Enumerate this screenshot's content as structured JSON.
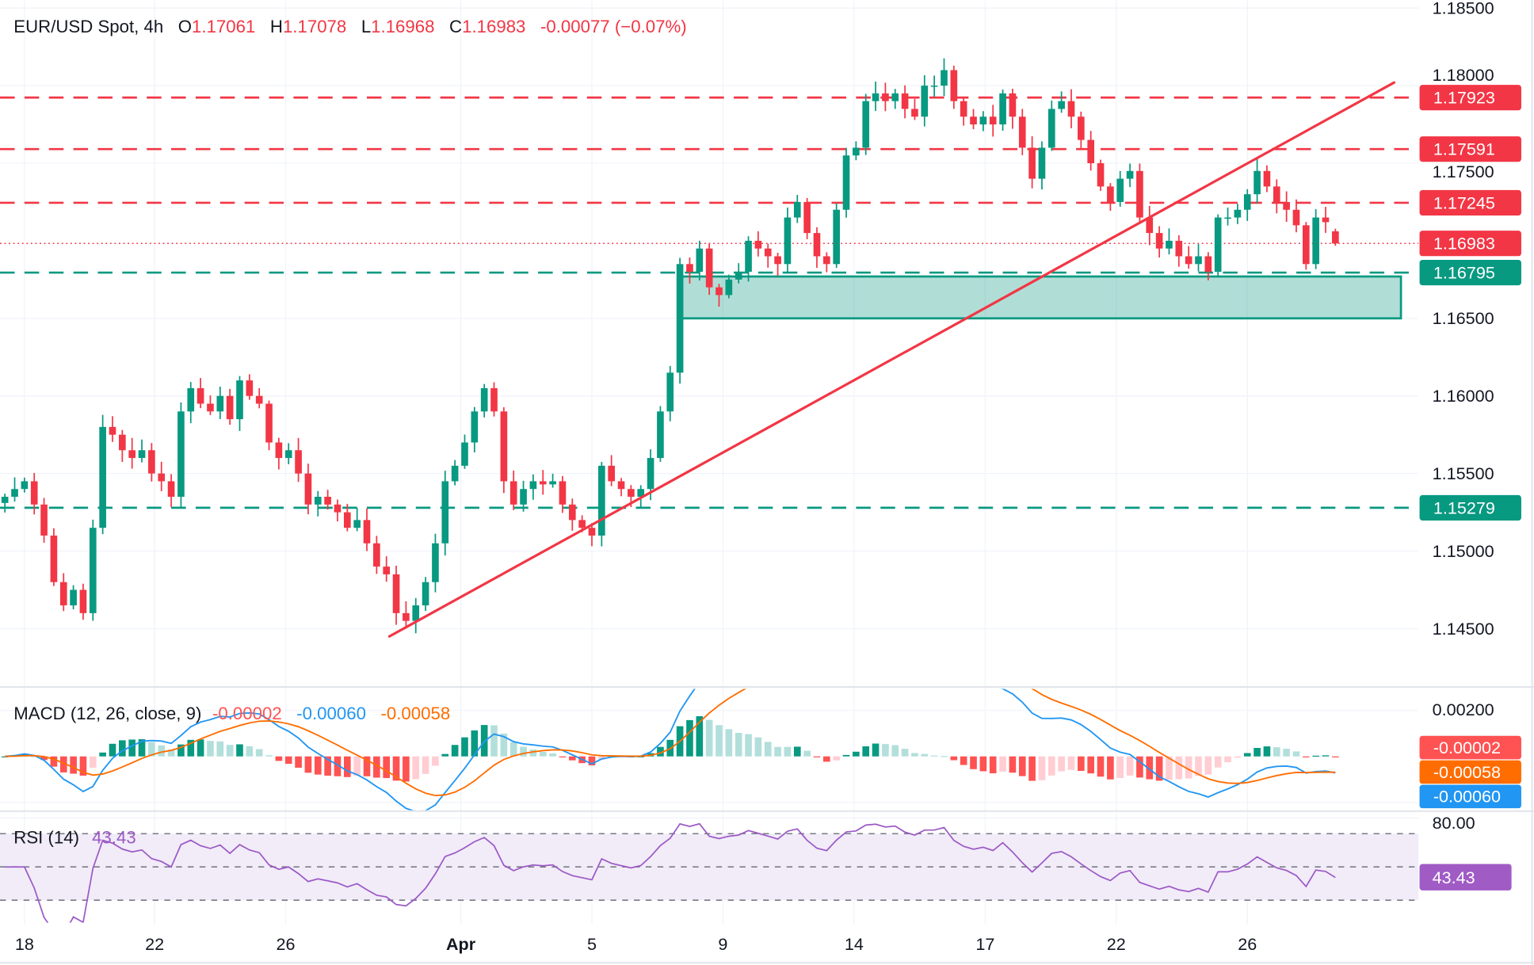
{
  "header": {
    "symbol": "EUR/USD Spot, 4h",
    "o_label": "O",
    "open": "1.17061",
    "h_label": "H",
    "high": "1.17078",
    "l_label": "L",
    "low": "1.16968",
    "c_label": "C",
    "close": "1.16983",
    "change": "-0.00077 (−0.07%)"
  },
  "price_axis": {
    "ticks": [
      "1.18500",
      "1.18000",
      "1.17500",
      "1.16500",
      "1.16000",
      "1.15500",
      "1.15000",
      "1.14500"
    ]
  },
  "levels": [
    {
      "price": "1.17923",
      "color": "#f23645",
      "style": "dashed"
    },
    {
      "price": "1.17591",
      "color": "#f23645",
      "style": "dashed"
    },
    {
      "price": "1.17245",
      "color": "#f23645",
      "style": "dashed"
    },
    {
      "price": "1.16795",
      "color": "#089981",
      "style": "dashed"
    },
    {
      "price": "1.15279",
      "color": "#089981",
      "style": "dashed"
    }
  ],
  "current_price": {
    "price": "1.16983",
    "color": "#f23645",
    "style": "dotted"
  },
  "support_zone": {
    "top": 1.16795,
    "bottom": 1.165,
    "color": "#089981"
  },
  "trendline": {
    "start_price": 1.1445,
    "end_price": 1.1802,
    "color": "#f23645"
  },
  "date_axis": {
    "labels": [
      "18",
      "22",
      "26",
      "Apr",
      "5",
      "9",
      "14",
      "17",
      "22",
      "26"
    ]
  },
  "macd": {
    "label": "MACD (12, 26, close, 9)",
    "histogram": "-0.00002",
    "macd_value": "-0.00060",
    "signal_value": "-0.00058",
    "axis_tick": "0.00200",
    "colors": {
      "histogram": "#ff5252",
      "macd": "#2196f3",
      "signal": "#ff6d00"
    }
  },
  "rsi": {
    "label": "RSI (14)",
    "value": "43.43",
    "axis_tick": "80.00",
    "bands": [
      70,
      50,
      30
    ],
    "color": "#9c59c6"
  },
  "colors": {
    "up": "#089981",
    "down": "#f23645"
  },
  "chart_data": {
    "type": "candlestick",
    "title": "EUR/USD Spot, 4h",
    "ylim": [
      1.1415,
      1.1855
    ],
    "closes": [
      1.1535,
      1.154,
      1.1545,
      1.153,
      1.151,
      1.148,
      1.1465,
      1.1475,
      1.146,
      1.1515,
      1.158,
      1.1575,
      1.1565,
      1.156,
      1.1565,
      1.155,
      1.1545,
      1.1535,
      1.159,
      1.1605,
      1.1595,
      1.159,
      1.16,
      1.1585,
      1.161,
      1.16,
      1.1595,
      1.157,
      1.156,
      1.1565,
      1.155,
      1.153,
      1.1535,
      1.153,
      1.1525,
      1.1515,
      1.152,
      1.1505,
      1.149,
      1.1485,
      1.146,
      1.1455,
      1.1465,
      1.148,
      1.1505,
      1.1545,
      1.1555,
      1.157,
      1.159,
      1.1605,
      1.159,
      1.1545,
      1.153,
      1.154,
      1.1545,
      1.1543,
      1.1545,
      1.153,
      1.152,
      1.1515,
      1.151,
      1.1555,
      1.1545,
      1.154,
      1.1535,
      1.154,
      1.156,
      1.159,
      1.1615,
      1.1685,
      1.168,
      1.1695,
      1.167,
      1.1665,
      1.1675,
      1.168,
      1.17,
      1.1695,
      1.169,
      1.1685,
      1.1715,
      1.1725,
      1.1705,
      1.169,
      1.1685,
      1.172,
      1.1755,
      1.176,
      1.179,
      1.1795,
      1.179,
      1.1795,
      1.1785,
      1.178,
      1.18,
      1.18,
      1.181,
      1.179,
      1.178,
      1.1775,
      1.178,
      1.1775,
      1.1795,
      1.178,
      1.176,
      1.174,
      1.176,
      1.1785,
      1.179,
      1.178,
      1.1765,
      1.175,
      1.1735,
      1.1725,
      1.174,
      1.1745,
      1.1715,
      1.1705,
      1.1695,
      1.17,
      1.169,
      1.1685,
      1.169,
      1.168,
      1.1715,
      1.1715,
      1.172,
      1.173,
      1.1745,
      1.1735,
      1.1725,
      1.172,
      1.171,
      1.1685,
      1.1715,
      1.1712,
      1.17061
    ],
    "last_candle": {
      "open": 1.17061,
      "high": 1.17078,
      "low": 1.16968,
      "close": 1.16983
    }
  }
}
